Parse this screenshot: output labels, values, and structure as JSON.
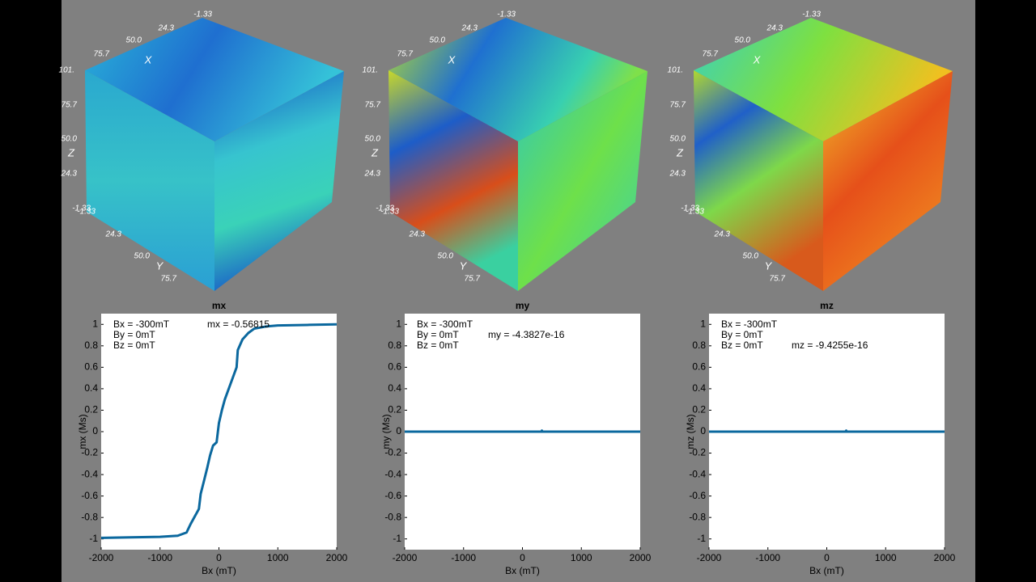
{
  "cube_axes": {
    "x_label": "X",
    "y_label": "Y",
    "z_label": "Z",
    "x_ticks": [
      "-1.33",
      "24.3",
      "50.0",
      "75.7",
      "101."
    ],
    "z_ticks": [
      "75.7",
      "50.0",
      "24.3",
      "-1.33"
    ],
    "y_ticks": [
      "-1.33",
      "24.3",
      "50.0",
      "75.7"
    ]
  },
  "chart_data": [
    {
      "type": "line",
      "title": "mx",
      "x_label": "Bx (mT)",
      "y_label": "mx (Ms)",
      "annotations": [
        "Bx = -300mT",
        "By = 0mT",
        "Bz = 0mT",
        "mx = -0.56815"
      ],
      "x": [
        -2000,
        -1500,
        -1000,
        -700,
        -550,
        -480,
        -400,
        -340,
        -310,
        -250,
        -200,
        -150,
        -100,
        -40,
        0,
        50,
        100,
        200,
        300,
        320,
        400,
        500,
        600,
        800,
        1000,
        1500,
        2000
      ],
      "values": [
        -0.99,
        -0.985,
        -0.98,
        -0.97,
        -0.94,
        -0.86,
        -0.78,
        -0.72,
        -0.58,
        -0.45,
        -0.34,
        -0.22,
        -0.13,
        -0.1,
        0.08,
        0.2,
        0.3,
        0.45,
        0.6,
        0.76,
        0.86,
        0.92,
        0.96,
        0.98,
        0.99,
        0.995,
        1
      ],
      "color": "#0b689e",
      "xlim": [
        -2000,
        2000
      ],
      "ylim": [
        -1.1,
        1.1
      ],
      "xticks": [
        -2000,
        -1000,
        0,
        1000,
        2000
      ],
      "yticks": [
        -1,
        -0.8,
        -0.6,
        -0.4,
        -0.2,
        0,
        0.2,
        0.4,
        0.6,
        0.8,
        1
      ]
    },
    {
      "type": "line",
      "title": "my",
      "x_label": "Bx (mT)",
      "y_label": "my (Ms)",
      "annotations": [
        "Bx = -300mT",
        "By = 0mT",
        "Bz = 0mT",
        "my = -4.3827e-16"
      ],
      "x": [
        -2000,
        320,
        330,
        340,
        2000
      ],
      "values": [
        0,
        0,
        0.01,
        0,
        0
      ],
      "color": "#0b689e",
      "xlim": [
        -2000,
        2000
      ],
      "ylim": [
        -1.1,
        1.1
      ],
      "xticks": [
        -2000,
        -1000,
        0,
        1000,
        2000
      ],
      "yticks": [
        -1,
        -0.8,
        -0.6,
        -0.4,
        -0.2,
        0,
        0.2,
        0.4,
        0.6,
        0.8,
        1
      ]
    },
    {
      "type": "line",
      "title": "mz",
      "x_label": "Bx (mT)",
      "y_label": "mz (Ms)",
      "annotations": [
        "Bx = -300mT",
        "By = 0mT",
        "Bz = 0mT",
        "mz = -9.4255e-16"
      ],
      "x": [
        -2000,
        320,
        330,
        340,
        2000
      ],
      "values": [
        0,
        0,
        0.01,
        0,
        0
      ],
      "color": "#0b689e",
      "xlim": [
        -2000,
        2000
      ],
      "ylim": [
        -1.1,
        1.1
      ],
      "xticks": [
        -2000,
        -1000,
        0,
        1000,
        2000
      ],
      "yticks": [
        -1,
        -0.8,
        -0.6,
        -0.4,
        -0.2,
        0,
        0.2,
        0.4,
        0.6,
        0.8,
        1
      ]
    }
  ]
}
